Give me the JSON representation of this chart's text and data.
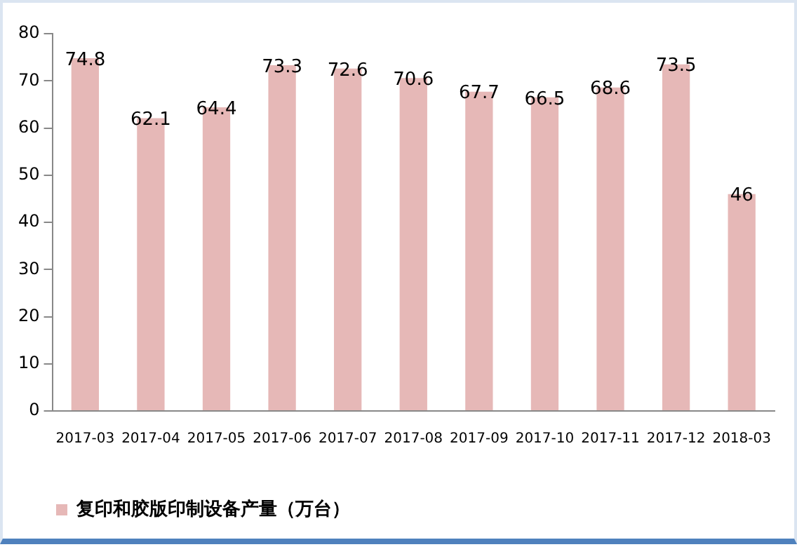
{
  "chart_data": {
    "type": "bar",
    "categories": [
      "2017-03",
      "2017-04",
      "2017-05",
      "2017-06",
      "2017-07",
      "2017-08",
      "2017-09",
      "2017-10",
      "2017-11",
      "2017-12",
      "2018-03"
    ],
    "series": [
      {
        "name": "复印和胶版印制设备产量（万台）",
        "color": "#e6b8b7",
        "values": [
          74.8,
          62.1,
          64.4,
          73.3,
          72.6,
          70.6,
          67.7,
          66.5,
          68.6,
          73.5,
          46
        ]
      }
    ],
    "ylim": [
      0,
      80
    ],
    "yticks": [
      0,
      10,
      20,
      30,
      40,
      50,
      60,
      70,
      80
    ],
    "grid": false,
    "legend": "bottom left",
    "data_labels": true
  }
}
